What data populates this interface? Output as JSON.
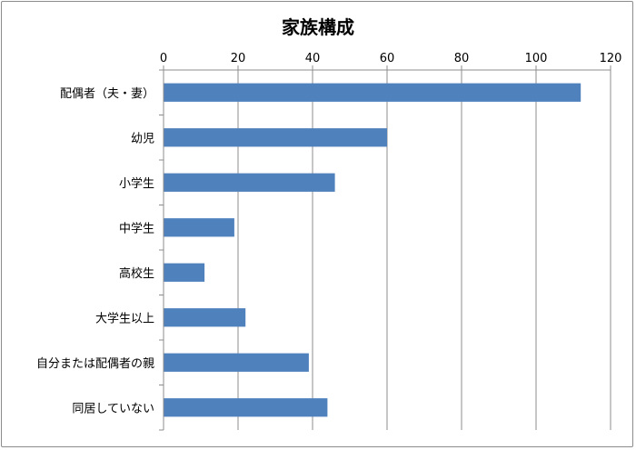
{
  "chart_data": {
    "type": "bar",
    "orientation": "horizontal",
    "title": "家族構成",
    "xlabel": "",
    "ylabel": "",
    "xlim": [
      0,
      120
    ],
    "ticks": [
      0,
      20,
      40,
      60,
      80,
      100,
      120
    ],
    "tick_labels": [
      "0",
      "20",
      "40",
      "60",
      "80",
      "100",
      "120"
    ],
    "axis_position": "top",
    "grid": true,
    "legend": "none",
    "bar_color": "#4f81bd",
    "categories": [
      "配偶者（夫・妻）",
      "幼児",
      "小学生",
      "中学生",
      "高校生",
      "大学生以上",
      "自分または配偶者の親",
      "同居していない"
    ],
    "values": [
      112,
      60,
      46,
      19,
      11,
      22,
      39,
      44
    ]
  }
}
